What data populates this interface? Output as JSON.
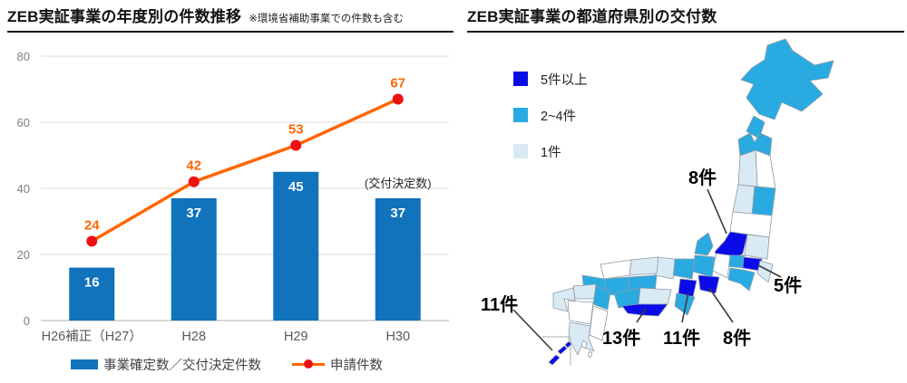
{
  "chart_data": [
    {
      "type": "bar",
      "title": "ZEB実証事業の年度別の件数推移",
      "subtitle": "※環境省補助事業での件数も含む",
      "categories": [
        "H26補正（H27）",
        "H28",
        "H29",
        "H30"
      ],
      "series": [
        {
          "name": "事業確定数／交付決定件数",
          "type": "bar",
          "values": [
            16,
            37,
            45,
            37
          ],
          "color": "#1073bc"
        },
        {
          "name": "申請件数",
          "type": "line",
          "values": [
            24,
            42,
            53,
            67
          ],
          "color": "#ff6600",
          "marker_color": "#ee1111"
        }
      ],
      "ylim": [
        0,
        80
      ],
      "ytick_step": 20,
      "grid": true,
      "legend_position": "bottom",
      "annotation": "(交付決定数)"
    },
    {
      "type": "map",
      "title": "ZEB実証事業の都道府県別の交付数",
      "legend": [
        {
          "label": "5件以上",
          "color": "#0b0be8"
        },
        {
          "label": "2~4件",
          "color": "#29abe2"
        },
        {
          "label": "1件",
          "color": "#daeaf5"
        }
      ],
      "callouts": [
        {
          "label": "8件"
        },
        {
          "label": "5件"
        },
        {
          "label": "13件"
        },
        {
          "label": "11件"
        },
        {
          "label": "8件"
        },
        {
          "label": "11件"
        }
      ]
    }
  ]
}
